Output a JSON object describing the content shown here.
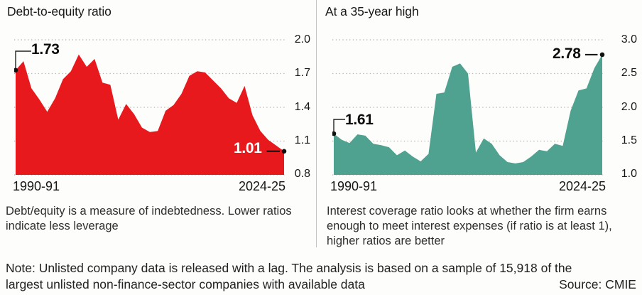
{
  "colors": {
    "left_fill": "#e8191d",
    "right_fill": "#4fa28f",
    "grid": "#b8b6b1",
    "ink": "#161616"
  },
  "chart_data": [
    {
      "type": "area",
      "title": "Debt-to-equity ratio",
      "fill": "#e8191d",
      "ylim": [
        0.8,
        2.0
      ],
      "yticks": [
        "2.0",
        "1.7",
        "1.4",
        "1.1",
        "0.8"
      ],
      "x_first": "1990-91",
      "x_last": "2024-25",
      "n_points": 35,
      "values": [
        1.73,
        1.81,
        1.57,
        1.47,
        1.36,
        1.48,
        1.65,
        1.72,
        1.87,
        1.76,
        1.83,
        1.62,
        1.6,
        1.29,
        1.43,
        1.34,
        1.22,
        1.18,
        1.19,
        1.37,
        1.42,
        1.52,
        1.68,
        1.72,
        1.71,
        1.64,
        1.57,
        1.48,
        1.44,
        1.59,
        1.33,
        1.19,
        1.11,
        1.06,
        1.01
      ],
      "annotations": {
        "start": "1.73",
        "end": "1.01"
      },
      "caption": "Debt/equity is a measure of indebtedness. Lower ratios indicate less leverage",
      "legend": "none",
      "grid": "dotted-horizontal"
    },
    {
      "type": "area",
      "title": "At a 35-year high",
      "fill": "#4fa28f",
      "ylim": [
        1.0,
        3.0
      ],
      "yticks": [
        "3.0",
        "2.5",
        "2.0",
        "1.5",
        "1.0"
      ],
      "x_first": "1990-91",
      "x_last": "2024-25",
      "n_points": 35,
      "values": [
        1.61,
        1.52,
        1.47,
        1.6,
        1.58,
        1.46,
        1.44,
        1.41,
        1.29,
        1.36,
        1.27,
        1.2,
        1.31,
        2.2,
        2.22,
        2.6,
        2.65,
        2.5,
        1.33,
        1.54,
        1.46,
        1.29,
        1.19,
        1.17,
        1.19,
        1.27,
        1.37,
        1.35,
        1.46,
        1.43,
        1.95,
        2.25,
        2.28,
        2.58,
        2.78
      ],
      "annotations": {
        "start": "1.61",
        "end": "2.78"
      },
      "caption": "Interest coverage ratio looks at whether the firm earns enough to meet interest expenses (if ratio is at least 1), higher ratios are better",
      "legend": "none",
      "grid": "dotted-horizontal"
    }
  ],
  "note_line1": "Note: Unlisted company data is released with a lag. The analysis is based on a sample of 15,918 of the",
  "note_line2": "largest unlisted non-finance-sector companies with available data",
  "source": "Source: CMIE"
}
